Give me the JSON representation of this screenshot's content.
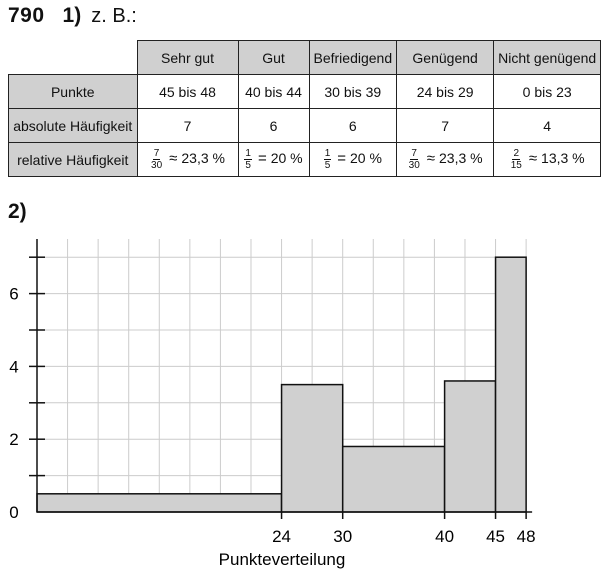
{
  "exercise": {
    "number": "790",
    "part1": "1)",
    "intro": "z. B.:",
    "part2": "2)"
  },
  "table": {
    "headers": [
      "Sehr gut",
      "Gut",
      "Befriedigend",
      "Genügend",
      "Nicht genügend"
    ],
    "rows": {
      "points": {
        "label": "Punkte",
        "cells": [
          "45 bis 48",
          "40 bis 44",
          "30 bis 39",
          "24 bis 29",
          "0 bis 23"
        ]
      },
      "absolute": {
        "label": "absolute Häufigkeit",
        "cells": [
          "7",
          "6",
          "6",
          "7",
          "4"
        ]
      },
      "relative": {
        "label": "relative Häufigkeit",
        "cells": [
          {
            "num": "7",
            "den": "30",
            "symbol": "≈",
            "value": "23,3 %"
          },
          {
            "num": "1",
            "den": "5",
            "symbol": "=",
            "value": "20 %"
          },
          {
            "num": "1",
            "den": "5",
            "symbol": "=",
            "value": "20 %"
          },
          {
            "num": "7",
            "den": "30",
            "symbol": "≈",
            "value": "23,3 %"
          },
          {
            "num": "2",
            "den": "15",
            "symbol": "≈",
            "value": "13,3 %"
          }
        ]
      }
    }
  },
  "chart_data": {
    "type": "bar",
    "xlabel": "Punkteverteilung",
    "ylabel": "",
    "xlim": [
      0,
      48
    ],
    "ylim": [
      0,
      7.5
    ],
    "x_tick_labels": [
      "24",
      "30",
      "40",
      "45",
      "48"
    ],
    "y_tick_labels": [
      "0",
      "2",
      "4",
      "6"
    ],
    "grid": true,
    "bars": [
      {
        "x0": 0,
        "x1": 24,
        "height": 0.5
      },
      {
        "x0": 24,
        "x1": 30,
        "height": 3.5
      },
      {
        "x0": 30,
        "x1": 40,
        "height": 1.8
      },
      {
        "x0": 40,
        "x1": 45,
        "height": 3.6
      },
      {
        "x0": 45,
        "x1": 48,
        "height": 7
      }
    ],
    "colors": {
      "bar_fill": "#d0d0d0",
      "bar_stroke": "#111111",
      "grid": "#cccccc"
    }
  }
}
